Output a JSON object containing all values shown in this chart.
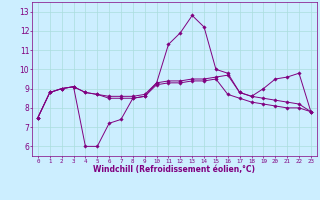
{
  "xlabel": "Windchill (Refroidissement éolien,°C)",
  "x": [
    0,
    1,
    2,
    3,
    4,
    5,
    6,
    7,
    8,
    9,
    10,
    11,
    12,
    13,
    14,
    15,
    16,
    17,
    18,
    19,
    20,
    21,
    22,
    23
  ],
  "line1": [
    7.5,
    8.8,
    9.0,
    9.1,
    6.0,
    6.0,
    7.2,
    7.4,
    8.5,
    8.6,
    9.3,
    11.3,
    11.9,
    12.8,
    12.2,
    10.0,
    9.8,
    8.8,
    8.6,
    9.0,
    9.5,
    9.6,
    9.8,
    7.8
  ],
  "line2": [
    7.5,
    8.8,
    9.0,
    9.1,
    8.8,
    8.7,
    8.6,
    8.6,
    8.6,
    8.7,
    9.3,
    9.4,
    9.4,
    9.5,
    9.5,
    9.6,
    9.7,
    8.8,
    8.6,
    8.5,
    8.4,
    8.3,
    8.2,
    7.8
  ],
  "line3": [
    7.5,
    8.8,
    9.0,
    9.1,
    8.8,
    8.7,
    8.5,
    8.5,
    8.5,
    8.6,
    9.2,
    9.3,
    9.3,
    9.4,
    9.4,
    9.5,
    8.7,
    8.5,
    8.3,
    8.2,
    8.1,
    8.0,
    8.0,
    7.8
  ],
  "line_color": "#800080",
  "bg_color": "#cceeff",
  "grid_color": "#aadddd",
  "text_color": "#800080",
  "ylim": [
    5.5,
    13.5
  ],
  "xlim": [
    -0.5,
    23.5
  ],
  "yticks": [
    6,
    7,
    8,
    9,
    10,
    11,
    12,
    13
  ],
  "xticks": [
    0,
    1,
    2,
    3,
    4,
    5,
    6,
    7,
    8,
    9,
    10,
    11,
    12,
    13,
    14,
    15,
    16,
    17,
    18,
    19,
    20,
    21,
    22,
    23
  ]
}
